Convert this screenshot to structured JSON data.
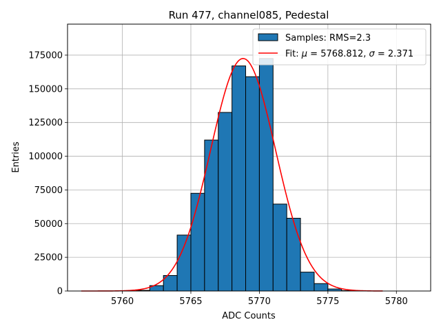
{
  "chart_data": {
    "type": "bar",
    "title": "Run 477, channel085, Pedestal",
    "xlabel": "ADC Counts",
    "ylabel": "Entries",
    "xlim": [
      5756,
      5782.5
    ],
    "ylim": [
      0,
      198000
    ],
    "xticks": [
      5760,
      5765,
      5770,
      5775,
      5780
    ],
    "yticks": [
      0,
      25000,
      50000,
      75000,
      100000,
      125000,
      150000,
      175000
    ],
    "grid": true,
    "legend_position": "top-right",
    "bin_width": 1,
    "series": [
      {
        "name": "Samples: RMS=2.3",
        "kind": "histogram",
        "color": "#1f77b4",
        "bin_starts": [
          5761,
          5762,
          5763,
          5764,
          5765,
          5766,
          5767,
          5768,
          5769,
          5770,
          5771,
          5772,
          5773,
          5774,
          5775,
          5776
        ],
        "values": [
          500,
          4000,
          11500,
          41500,
          72500,
          112000,
          132500,
          167000,
          159000,
          172500,
          64500,
          54000,
          14000,
          5500,
          1500,
          300
        ]
      },
      {
        "name": "Fit: μ = 5768.812, σ = 2.371",
        "legend_parts": [
          "Fit: ",
          "μ",
          " = 5768.812, ",
          "σ",
          " = 2.371"
        ],
        "kind": "line",
        "color": "#ff0000",
        "mu": 5768.812,
        "sigma": 2.371,
        "amplitude": 172500,
        "x_range": [
          5757,
          5779
        ]
      }
    ]
  }
}
